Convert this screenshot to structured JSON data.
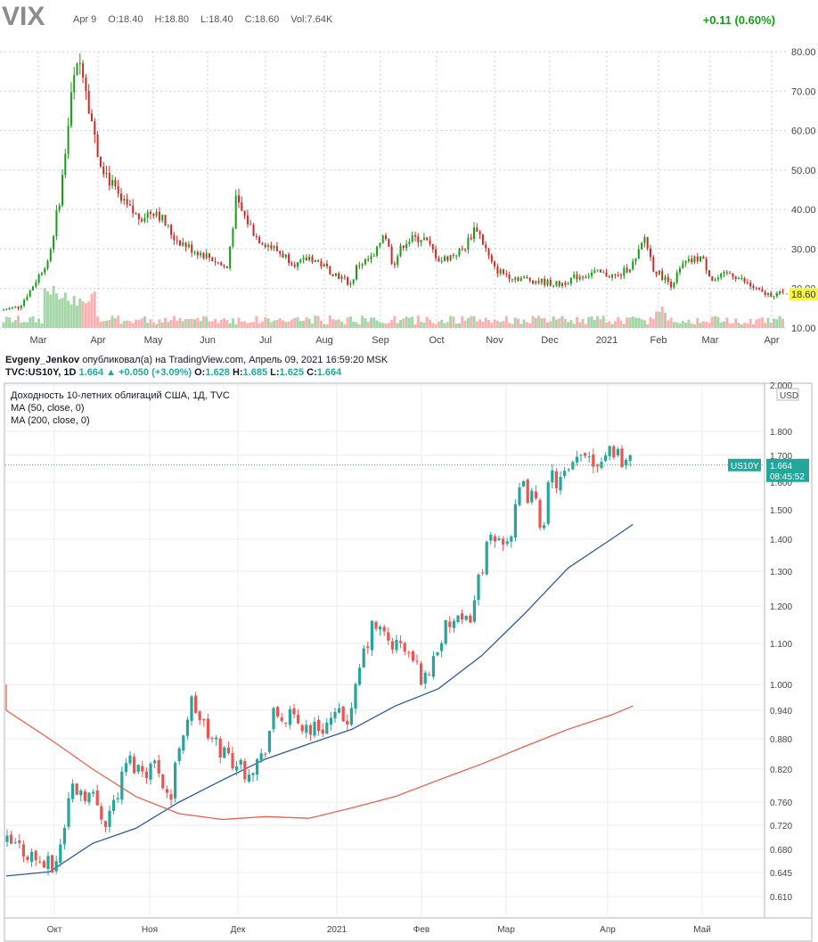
{
  "vix": {
    "symbol": "VIX",
    "date": "Apr 9",
    "open": "O:18.40",
    "high": "H:18.80",
    "low": "L:18.40",
    "close": "C:18.60",
    "volume": "Vol:7.64K",
    "change": "+0.11 (0.60%)",
    "last_label": "18.60",
    "colors": {
      "up": "#1a9c1a",
      "down": "#cc2a2a",
      "vol_up": "#a5d6a7",
      "vol_down": "#f7b3b3",
      "last_bg": "#f5f542"
    }
  },
  "publish": {
    "author": "Evgeny_Jenkov",
    "text": " опубликовал(а) на TradingView.com, Апрель 09, 2021 16:59:20 MSK"
  },
  "us10y_header": {
    "symbol": "TVC:US10Y, 1D",
    "last": "1.664",
    "change": "+0.050 (+3.09%)",
    "o_label": "O:",
    "o": "1.628",
    "h_label": "H:",
    "h": "1.685",
    "l_label": "L:",
    "l": "1.625",
    "c_label": "C:",
    "c": "1.664"
  },
  "us10y_legend": {
    "title": "Доходность 10-летних облигаций США, 1Д, TVC",
    "ma50": "MA (50, close, 0)",
    "ma200": "MA (200, close, 0)",
    "currency": "USD",
    "price_label": "US10Y",
    "price_value": "1.664",
    "countdown": "08:45:52",
    "colors": {
      "up": "#26a69a",
      "down": "#ef5350",
      "ma50": "#2a5b9c",
      "ma200": "#e8604c",
      "label_bg": "#26a69a"
    }
  },
  "chart_data": [
    {
      "type": "candlestick",
      "name": "VIX",
      "x_ticks": [
        "Mar",
        "Apr",
        "May",
        "Jun",
        "Jul",
        "Aug",
        "Sep",
        "Oct",
        "Nov",
        "Dec",
        "2021",
        "Feb",
        "Mar",
        "Apr"
      ],
      "y_ticks": [
        "80.00",
        "70.00",
        "60.00",
        "50.00",
        "40.00",
        "30.00",
        "20.00",
        "10.00"
      ],
      "ylim": [
        10,
        80
      ],
      "close_path": [
        {
          "m": 0,
          "v": 14.5
        },
        {
          "m": 0.3,
          "v": 15.5
        },
        {
          "m": 0.5,
          "v": 20
        },
        {
          "m": 0.8,
          "v": 28
        },
        {
          "m": 1.0,
          "v": 45
        },
        {
          "m": 1.2,
          "v": 72
        },
        {
          "m": 1.35,
          "v": 78
        },
        {
          "m": 1.6,
          "v": 55
        },
        {
          "m": 1.8,
          "v": 48
        },
        {
          "m": 2.0,
          "v": 42
        },
        {
          "m": 2.3,
          "v": 38
        },
        {
          "m": 2.6,
          "v": 40
        },
        {
          "m": 2.9,
          "v": 33
        },
        {
          "m": 3.2,
          "v": 30
        },
        {
          "m": 3.5,
          "v": 28
        },
        {
          "m": 3.8,
          "v": 25
        },
        {
          "m": 3.95,
          "v": 42
        },
        {
          "m": 4.3,
          "v": 33
        },
        {
          "m": 4.6,
          "v": 30
        },
        {
          "m": 5.0,
          "v": 26
        },
        {
          "m": 5.2,
          "v": 28
        },
        {
          "m": 5.6,
          "v": 24
        },
        {
          "m": 5.9,
          "v": 21
        },
        {
          "m": 6.0,
          "v": 26
        },
        {
          "m": 6.3,
          "v": 28
        },
        {
          "m": 6.45,
          "v": 35
        },
        {
          "m": 6.6,
          "v": 26
        },
        {
          "m": 6.8,
          "v": 32
        },
        {
          "m": 7.1,
          "v": 33
        },
        {
          "m": 7.4,
          "v": 27
        },
        {
          "m": 7.8,
          "v": 30
        },
        {
          "m": 8.0,
          "v": 36
        },
        {
          "m": 8.3,
          "v": 25
        },
        {
          "m": 8.6,
          "v": 23
        },
        {
          "m": 9.0,
          "v": 22
        },
        {
          "m": 9.4,
          "v": 21
        },
        {
          "m": 9.7,
          "v": 23
        },
        {
          "m": 10.0,
          "v": 24
        },
        {
          "m": 10.4,
          "v": 23
        },
        {
          "m": 10.7,
          "v": 27
        },
        {
          "m": 10.85,
          "v": 33
        },
        {
          "m": 11.0,
          "v": 25
        },
        {
          "m": 11.3,
          "v": 21
        },
        {
          "m": 11.5,
          "v": 26
        },
        {
          "m": 11.8,
          "v": 28
        },
        {
          "m": 12.0,
          "v": 22
        },
        {
          "m": 12.3,
          "v": 24
        },
        {
          "m": 12.6,
          "v": 21
        },
        {
          "m": 12.85,
          "v": 18.6
        }
      ]
    },
    {
      "type": "candlestick",
      "name": "US10Y",
      "x_ticks": [
        "Окт",
        "Ноя",
        "Дек",
        "2021",
        "Фев",
        "Мар",
        "Апр",
        "Май"
      ],
      "y_ticks": [
        "2.000",
        "1.800",
        "1.700",
        "1.600",
        "1.500",
        "1.400",
        "1.300",
        "1.200",
        "1.100",
        "1.000",
        "0.940",
        "0.880",
        "0.820",
        "0.760",
        "0.720",
        "0.680",
        "0.645",
        "0.610"
      ],
      "ylim": [
        0.58,
        2.0
      ],
      "last": 1.664,
      "close_path": [
        {
          "m": 0,
          "v": 0.69
        },
        {
          "m": 0.2,
          "v": 0.68
        },
        {
          "m": 0.4,
          "v": 0.66
        },
        {
          "m": 0.55,
          "v": 0.65
        },
        {
          "m": 0.65,
          "v": 0.7
        },
        {
          "m": 0.75,
          "v": 0.79
        },
        {
          "m": 0.9,
          "v": 0.78
        },
        {
          "m": 1.0,
          "v": 0.77
        },
        {
          "m": 1.15,
          "v": 0.73
        },
        {
          "m": 1.3,
          "v": 0.78
        },
        {
          "m": 1.4,
          "v": 0.84
        },
        {
          "m": 1.55,
          "v": 0.82
        },
        {
          "m": 1.75,
          "v": 0.83
        },
        {
          "m": 1.9,
          "v": 0.76
        },
        {
          "m": 2.0,
          "v": 0.87
        },
        {
          "m": 2.15,
          "v": 0.96
        },
        {
          "m": 2.35,
          "v": 0.88
        },
        {
          "m": 2.55,
          "v": 0.85
        },
        {
          "m": 2.75,
          "v": 0.82
        },
        {
          "m": 2.95,
          "v": 0.84
        },
        {
          "m": 3.1,
          "v": 0.93
        },
        {
          "m": 3.3,
          "v": 0.92
        },
        {
          "m": 3.55,
          "v": 0.9
        },
        {
          "m": 3.8,
          "v": 0.92
        },
        {
          "m": 4.0,
          "v": 0.93
        },
        {
          "m": 4.1,
          "v": 1.05
        },
        {
          "m": 4.25,
          "v": 1.15
        },
        {
          "m": 4.45,
          "v": 1.1
        },
        {
          "m": 4.6,
          "v": 1.09
        },
        {
          "m": 4.75,
          "v": 1.04
        },
        {
          "m": 4.85,
          "v": 1.01
        },
        {
          "m": 5.0,
          "v": 1.1
        },
        {
          "m": 5.15,
          "v": 1.16
        },
        {
          "m": 5.3,
          "v": 1.14
        },
        {
          "m": 5.4,
          "v": 1.2
        },
        {
          "m": 5.55,
          "v": 1.37
        },
        {
          "m": 5.7,
          "v": 1.4
        },
        {
          "m": 5.85,
          "v": 1.42
        },
        {
          "m": 5.95,
          "v": 1.58
        },
        {
          "m": 6.1,
          "v": 1.54
        },
        {
          "m": 6.2,
          "v": 1.44
        },
        {
          "m": 6.3,
          "v": 1.62
        },
        {
          "m": 6.4,
          "v": 1.6
        },
        {
          "m": 6.55,
          "v": 1.64
        },
        {
          "m": 6.7,
          "v": 1.73
        },
        {
          "m": 6.8,
          "v": 1.68
        },
        {
          "m": 6.9,
          "v": 1.7
        },
        {
          "m": 7.0,
          "v": 1.74
        },
        {
          "m": 7.1,
          "v": 1.7
        },
        {
          "m": 7.2,
          "v": 1.67
        },
        {
          "m": 7.25,
          "v": 1.664
        }
      ],
      "ma50": [
        {
          "m": 0,
          "v": 0.64
        },
        {
          "m": 0.5,
          "v": 0.646
        },
        {
          "m": 1.0,
          "v": 0.69
        },
        {
          "m": 1.5,
          "v": 0.715
        },
        {
          "m": 2.0,
          "v": 0.76
        },
        {
          "m": 2.5,
          "v": 0.8
        },
        {
          "m": 3.0,
          "v": 0.84
        },
        {
          "m": 3.5,
          "v": 0.87
        },
        {
          "m": 4.0,
          "v": 0.9
        },
        {
          "m": 4.5,
          "v": 0.95
        },
        {
          "m": 5.0,
          "v": 0.99
        },
        {
          "m": 5.5,
          "v": 1.07
        },
        {
          "m": 6.0,
          "v": 1.18
        },
        {
          "m": 6.5,
          "v": 1.31
        },
        {
          "m": 7.0,
          "v": 1.4
        },
        {
          "m": 7.25,
          "v": 1.45
        }
      ],
      "ma200": [
        {
          "m": -0.5,
          "v": 1.0
        },
        {
          "m": 0,
          "v": 0.94
        },
        {
          "m": 0.5,
          "v": 0.88
        },
        {
          "m": 1.0,
          "v": 0.82
        },
        {
          "m": 1.5,
          "v": 0.77
        },
        {
          "m": 2.0,
          "v": 0.74
        },
        {
          "m": 2.5,
          "v": 0.73
        },
        {
          "m": 3.0,
          "v": 0.735
        },
        {
          "m": 3.5,
          "v": 0.732
        },
        {
          "m": 4.0,
          "v": 0.75
        },
        {
          "m": 4.5,
          "v": 0.77
        },
        {
          "m": 5.0,
          "v": 0.8
        },
        {
          "m": 5.5,
          "v": 0.83
        },
        {
          "m": 6.0,
          "v": 0.865
        },
        {
          "m": 6.5,
          "v": 0.9
        },
        {
          "m": 7.0,
          "v": 0.93
        },
        {
          "m": 7.25,
          "v": 0.95
        }
      ]
    }
  ]
}
